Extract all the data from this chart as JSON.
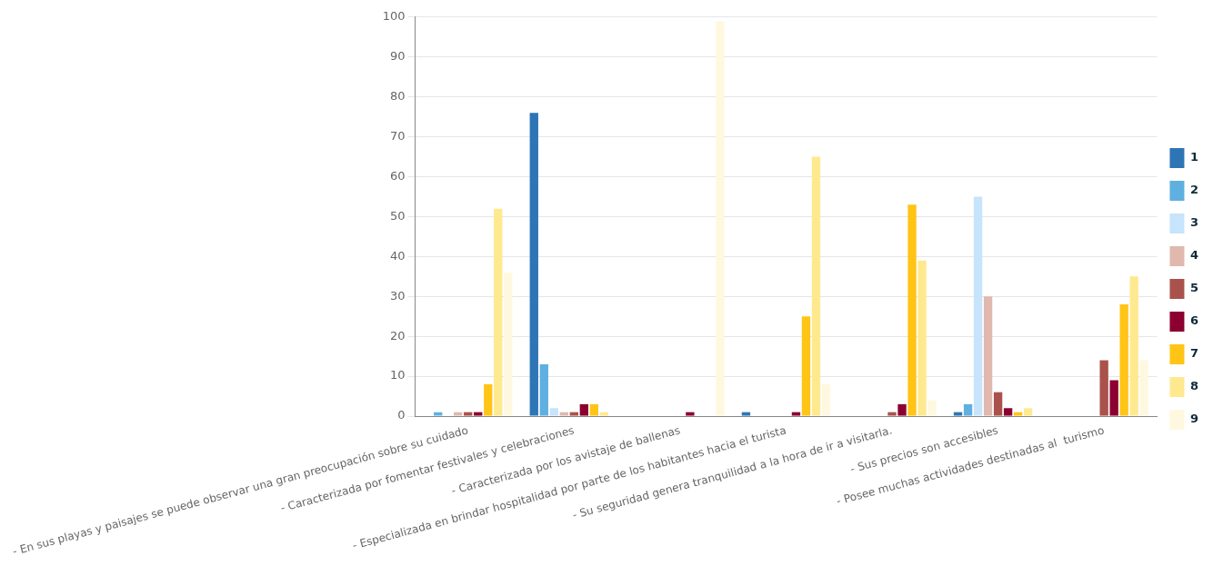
{
  "chart_data": {
    "type": "bar",
    "categories": [
      "- En sus playas y paisajes se puede observar una gran preocupación sobre su cuidado",
      "- Caracterizada por fomentar festivales y celebraciones",
      "- Caracterizada por los avistaje de ballenas",
      "- Especializada en brindar hospitalidad por parte de los habitantes hacia el turista",
      "- Su seguridad genera tranquilidad a la hora de ir a visitarla.",
      "- Sus precios son accesibles",
      "- Posee muchas actividades destinadas al  turismo"
    ],
    "series": [
      {
        "name": "1",
        "color": "#2e75b6",
        "values": [
          0,
          76,
          0,
          1,
          0,
          1,
          0
        ]
      },
      {
        "name": "2",
        "color": "#5fb0e0",
        "values": [
          1,
          13,
          0,
          0,
          0,
          3,
          0
        ]
      },
      {
        "name": "3",
        "color": "#c6e4fb",
        "values": [
          0,
          2,
          0,
          0,
          0,
          55,
          0
        ]
      },
      {
        "name": "4",
        "color": "#e0b8ae",
        "values": [
          1,
          1,
          0,
          0,
          0,
          30,
          0
        ]
      },
      {
        "name": "5",
        "color": "#a9524c",
        "values": [
          1,
          1,
          0,
          0,
          1,
          6,
          14
        ]
      },
      {
        "name": "6",
        "color": "#8b0030",
        "values": [
          1,
          3,
          1,
          1,
          3,
          2,
          9
        ]
      },
      {
        "name": "7",
        "color": "#ffc416",
        "values": [
          8,
          3,
          0,
          25,
          53,
          1,
          28
        ]
      },
      {
        "name": "8",
        "color": "#ffe98f",
        "values": [
          52,
          1,
          0,
          65,
          39,
          2,
          35
        ]
      },
      {
        "name": "9",
        "color": "#fff8e0",
        "values": [
          36,
          0,
          99,
          8,
          4,
          0,
          14
        ]
      }
    ],
    "ylim": [
      0,
      100
    ],
    "yticks": [
      0,
      10,
      20,
      30,
      40,
      50,
      60,
      70,
      80,
      90,
      100
    ],
    "grid": "y",
    "legend": "right"
  }
}
